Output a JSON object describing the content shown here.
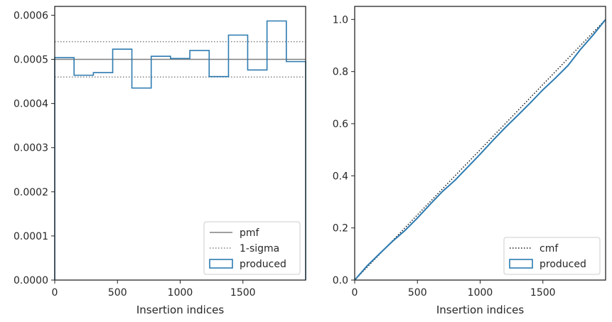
{
  "chart_data": [
    {
      "type": "histogram",
      "xlabel": "Insertion indices",
      "ylabel": "",
      "xlim": [
        0,
        2000
      ],
      "ylim": [
        0,
        0.00062
      ],
      "xticks": [
        0,
        500,
        1000,
        1500
      ],
      "xtick_labels": [
        "0",
        "500",
        "1000",
        "1500"
      ],
      "yticks": [
        0,
        0.0001,
        0.0002,
        0.0003,
        0.0004,
        0.0005,
        0.0006
      ],
      "ytick_labels": [
        "0.0000",
        "0.0001",
        "0.0002",
        "0.0003",
        "0.0004",
        "0.0005",
        "0.0006"
      ],
      "bin_edges": [
        0,
        154,
        308,
        462,
        615,
        769,
        923,
        1077,
        1231,
        1385,
        1538,
        1692,
        1846,
        2000
      ],
      "produced": [
        0.000504,
        0.000464,
        0.00047,
        0.000523,
        0.000435,
        0.000507,
        0.000502,
        0.00052,
        0.000461,
        0.000555,
        0.000476,
        0.000587,
        0.000495
      ],
      "pmf": 0.0005,
      "sigma_band": [
        0.00046,
        0.00054
      ],
      "legend_position": "lower right",
      "legend": [
        {
          "label": "pmf",
          "style": "solid-line"
        },
        {
          "label": "1-sigma",
          "style": "dotted-line"
        },
        {
          "label": "produced",
          "style": "patch"
        }
      ]
    },
    {
      "type": "line",
      "xlabel": "Insertion indices",
      "ylabel": "",
      "xlim": [
        0,
        2000
      ],
      "ylim": [
        0,
        1.05
      ],
      "xticks": [
        0,
        500,
        1000,
        1500
      ],
      "xtick_labels": [
        "0",
        "500",
        "1000",
        "1500"
      ],
      "yticks": [
        0,
        0.2,
        0.4,
        0.6,
        0.8,
        1.0
      ],
      "ytick_labels": [
        "0.0",
        "0.2",
        "0.4",
        "0.6",
        "0.8",
        "1.0"
      ],
      "series": [
        {
          "name": "cmf",
          "x": [
            0,
            2000
          ],
          "y": [
            0,
            1.0
          ]
        },
        {
          "name": "produced",
          "x": [
            0,
            100,
            200,
            300,
            400,
            500,
            600,
            700,
            800,
            900,
            1000,
            1100,
            1200,
            1300,
            1400,
            1500,
            1600,
            1700,
            1800,
            1900,
            2000
          ],
          "y": [
            0,
            0.055,
            0.102,
            0.148,
            0.19,
            0.238,
            0.29,
            0.34,
            0.383,
            0.433,
            0.483,
            0.535,
            0.585,
            0.632,
            0.68,
            0.73,
            0.775,
            0.823,
            0.885,
            0.94,
            1.0
          ]
        }
      ],
      "legend_position": "lower right",
      "legend": [
        {
          "label": "cmf",
          "style": "dotted-line"
        },
        {
          "label": "produced",
          "style": "patch"
        }
      ]
    }
  ],
  "colors": {
    "produced": "#2d7bb0",
    "pmf": "#808080",
    "sigma": "#808080",
    "cmf": "#1a1a1a",
    "axes": "#262626"
  }
}
